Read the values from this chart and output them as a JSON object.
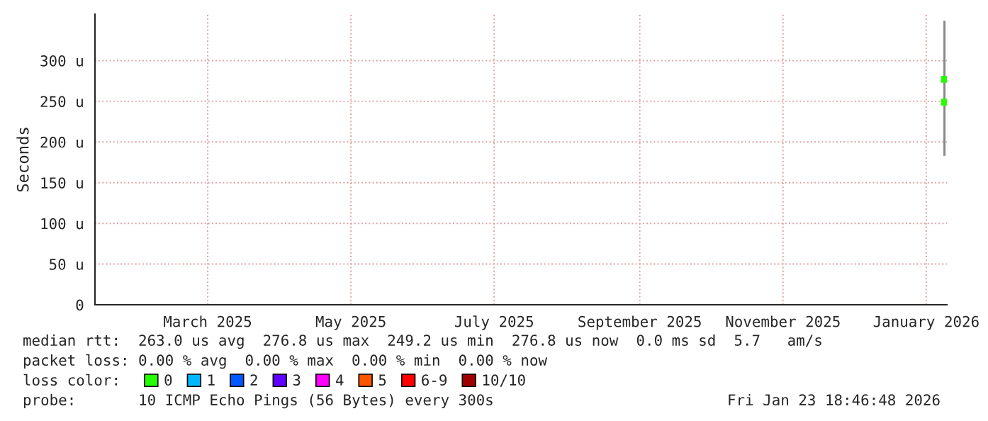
{
  "chart_data": {
    "type": "scatter",
    "ylabel": "Seconds",
    "xlim": [
      "2025-01-26",
      "2026-01-23T19:00"
    ],
    "xticks": [
      {
        "value": "2025-03-15",
        "label": "March 2025"
      },
      {
        "value": "2025-05-15",
        "label": "May 2025"
      },
      {
        "value": "2025-07-15",
        "label": "July 2025"
      },
      {
        "value": "2025-09-15",
        "label": "September 2025"
      },
      {
        "value": "2025-11-15",
        "label": "November 2025"
      },
      {
        "value": "2026-01-15",
        "label": "January 2026"
      }
    ],
    "ylim": [
      0,
      357
    ],
    "yticks": [
      0,
      {
        "value": 50,
        "label": "50 u"
      },
      {
        "value": 100,
        "label": "100 u"
      },
      {
        "value": 150,
        "label": "150 u"
      },
      {
        "value": 200,
        "label": "200 u"
      },
      {
        "value": 250,
        "label": "250 u"
      },
      {
        "value": 300,
        "label": "300 u"
      }
    ],
    "grid": true,
    "legend": "bottom",
    "legend_title": "loss color:",
    "marker": "square",
    "series": [
      {
        "type": "bar",
        "color": "#888888",
        "x": [
          "2026-01-22T18:00"
        ],
        "base": [
          183
        ],
        "values": [
          166
        ]
      },
      {
        "name": "0",
        "color": "#26ff00",
        "x": [
          "2026-01-22T18:00",
          "2026-01-22T19:00"
        ],
        "values": [
          277,
          249
        ]
      },
      {
        "name": "1",
        "color": "#00b8ff"
      },
      {
        "name": "2",
        "color": "#0059ff"
      },
      {
        "name": "3",
        "color": "#5e00ff"
      },
      {
        "name": "4",
        "color": "#ff00ff"
      },
      {
        "name": "5",
        "color": "#ff5500"
      },
      {
        "name": "6-9",
        "color": "#ff0000"
      },
      {
        "name": "10/10",
        "color": "#a10000"
      }
    ],
    "annotations": [
      "median rtt:  263.0 us avg  276.8 us max  249.2 us min  276.8 us now  0.0 ms sd  5.7   am/s",
      "packet loss: 0.00 % avg  0.00 % max  0.00 % min  0.00 % now",
      "probe:       10 ICMP Echo Pings (56 Bytes) every 300s",
      "Fri Jan 23 18:46:48 2026"
    ]
  }
}
